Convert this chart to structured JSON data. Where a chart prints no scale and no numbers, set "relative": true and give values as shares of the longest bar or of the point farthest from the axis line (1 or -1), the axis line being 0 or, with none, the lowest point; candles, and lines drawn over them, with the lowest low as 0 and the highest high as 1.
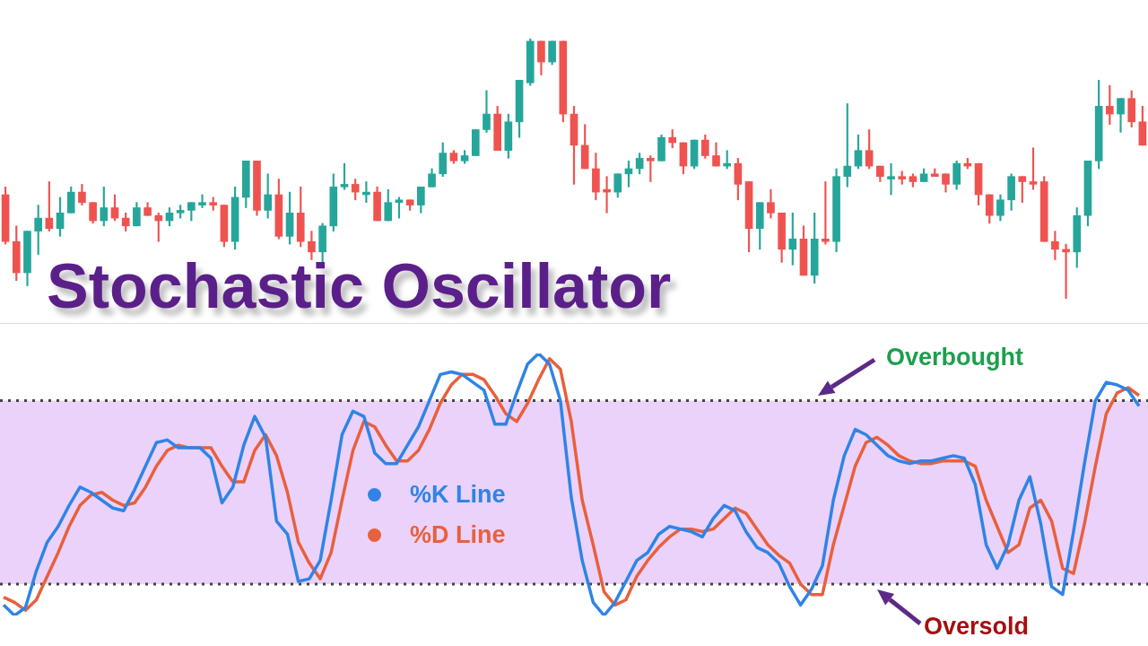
{
  "chart_data": [
    {
      "type": "candlestick",
      "title": "Stochastic Oscillator",
      "relative": true,
      "categories": [
        null,
        null,
        null,
        null,
        null,
        null,
        null,
        null,
        null,
        null,
        null,
        null,
        null,
        null,
        null,
        null,
        null,
        null,
        null,
        null,
        null,
        null,
        null,
        null,
        null,
        null,
        null,
        null,
        null,
        null,
        null,
        null,
        null,
        null,
        null,
        null,
        null,
        null,
        null,
        null,
        null,
        null,
        null,
        null,
        null,
        null,
        null,
        null,
        null,
        null,
        null,
        null,
        null,
        null,
        null,
        null,
        null,
        null,
        null,
        null,
        null,
        null,
        null,
        null,
        null,
        null,
        null,
        null,
        null,
        null,
        null,
        null,
        null,
        null,
        null,
        null,
        null,
        null,
        null,
        null,
        null,
        null,
        null,
        null,
        null,
        null,
        null,
        null,
        null,
        null,
        null,
        null,
        null,
        null,
        null,
        null,
        null,
        null,
        null,
        null,
        null,
        null,
        null,
        null,
        null
      ],
      "ohlc": [
        [
          0.4,
          0.43,
          0.21,
          0.22
        ],
        [
          0.22,
          0.28,
          0.07,
          0.1
        ],
        [
          0.1,
          0.26,
          0.05,
          0.26
        ],
        [
          0.26,
          0.36,
          0.17,
          0.31
        ],
        [
          0.31,
          0.45,
          0.26,
          0.27
        ],
        [
          0.27,
          0.39,
          0.24,
          0.33
        ],
        [
          0.33,
          0.43,
          0.33,
          0.41
        ],
        [
          0.41,
          0.44,
          0.36,
          0.37
        ],
        [
          0.37,
          0.37,
          0.29,
          0.3
        ],
        [
          0.3,
          0.43,
          0.28,
          0.35
        ],
        [
          0.35,
          0.4,
          0.3,
          0.31
        ],
        [
          0.31,
          0.33,
          0.26,
          0.28
        ],
        [
          0.28,
          0.37,
          0.28,
          0.35
        ],
        [
          0.35,
          0.37,
          0.32,
          0.32
        ],
        [
          0.32,
          0.33,
          0.22,
          0.3
        ],
        [
          0.3,
          0.35,
          0.28,
          0.33
        ],
        [
          0.33,
          0.36,
          0.31,
          0.34
        ],
        [
          0.34,
          0.37,
          0.3,
          0.37
        ],
        [
          0.36,
          0.4,
          0.35,
          0.37
        ],
        [
          0.37,
          0.39,
          0.34,
          0.36
        ],
        [
          0.36,
          0.36,
          0.2,
          0.22
        ],
        [
          0.22,
          0.43,
          0.19,
          0.39
        ],
        [
          0.39,
          0.53,
          0.35,
          0.53
        ],
        [
          0.53,
          0.53,
          0.32,
          0.34
        ],
        [
          0.34,
          0.48,
          0.31,
          0.4
        ],
        [
          0.4,
          0.46,
          0.23,
          0.24
        ],
        [
          0.24,
          0.41,
          0.21,
          0.33
        ],
        [
          0.33,
          0.43,
          0.2,
          0.22
        ],
        [
          0.22,
          0.26,
          0.15,
          0.18
        ],
        [
          0.18,
          0.29,
          0.14,
          0.28
        ],
        [
          0.28,
          0.48,
          0.26,
          0.43
        ],
        [
          0.43,
          0.52,
          0.42,
          0.44
        ],
        [
          0.44,
          0.46,
          0.38,
          0.41
        ],
        [
          0.4,
          0.45,
          0.37,
          0.41
        ],
        [
          0.41,
          0.43,
          0.3,
          0.3
        ],
        [
          0.3,
          0.42,
          0.3,
          0.37
        ],
        [
          0.37,
          0.39,
          0.31,
          0.38
        ],
        [
          0.38,
          0.38,
          0.34,
          0.36
        ],
        [
          0.36,
          0.43,
          0.33,
          0.43
        ],
        [
          0.43,
          0.5,
          0.43,
          0.48
        ],
        [
          0.48,
          0.6,
          0.47,
          0.56
        ],
        [
          0.56,
          0.57,
          0.52,
          0.53
        ],
        [
          0.53,
          0.57,
          0.52,
          0.55
        ],
        [
          0.55,
          0.65,
          0.55,
          0.65
        ],
        [
          0.65,
          0.8,
          0.64,
          0.71
        ],
        [
          0.71,
          0.74,
          0.57,
          0.57
        ],
        [
          0.57,
          0.71,
          0.54,
          0.68
        ],
        [
          0.68,
          0.84,
          0.62,
          0.84
        ],
        [
          0.83,
          1.0,
          0.82,
          0.99
        ],
        [
          0.99,
          0.99,
          0.86,
          0.91
        ],
        [
          0.91,
          0.99,
          0.9,
          0.99
        ],
        [
          0.99,
          0.99,
          0.68,
          0.71
        ],
        [
          0.71,
          0.74,
          0.44,
          0.59
        ],
        [
          0.59,
          0.67,
          0.5,
          0.5
        ],
        [
          0.5,
          0.56,
          0.38,
          0.41
        ],
        [
          0.42,
          0.47,
          0.33,
          0.41
        ],
        [
          0.41,
          0.48,
          0.39,
          0.48
        ],
        [
          0.48,
          0.53,
          0.43,
          0.5
        ],
        [
          0.5,
          0.56,
          0.48,
          0.54
        ],
        [
          0.54,
          0.55,
          0.45,
          0.53
        ],
        [
          0.53,
          0.63,
          0.53,
          0.62
        ],
        [
          0.62,
          0.65,
          0.58,
          0.6
        ],
        [
          0.6,
          0.6,
          0.48,
          0.51
        ],
        [
          0.51,
          0.61,
          0.5,
          0.61
        ],
        [
          0.61,
          0.63,
          0.54,
          0.55
        ],
        [
          0.55,
          0.6,
          0.51,
          0.51
        ],
        [
          0.51,
          0.57,
          0.5,
          0.52
        ],
        [
          0.52,
          0.54,
          0.38,
          0.44
        ],
        [
          0.45,
          0.45,
          0.18,
          0.27
        ],
        [
          0.27,
          0.37,
          0.19,
          0.37
        ],
        [
          0.37,
          0.42,
          0.31,
          0.33
        ],
        [
          0.33,
          0.33,
          0.14,
          0.19
        ],
        [
          0.19,
          0.33,
          0.13,
          0.23
        ],
        [
          0.23,
          0.28,
          0.09,
          0.09
        ],
        [
          0.09,
          0.33,
          0.06,
          0.23
        ],
        [
          0.23,
          0.45,
          0.21,
          0.22
        ],
        [
          0.22,
          0.5,
          0.18,
          0.47
        ],
        [
          0.47,
          0.75,
          0.43,
          0.51
        ],
        [
          0.51,
          0.63,
          0.5,
          0.57
        ],
        [
          0.57,
          0.65,
          0.5,
          0.51
        ],
        [
          0.51,
          0.51,
          0.45,
          0.47
        ],
        [
          0.46,
          0.52,
          0.4,
          0.47
        ],
        [
          0.47,
          0.49,
          0.44,
          0.46
        ],
        [
          0.47,
          0.48,
          0.43,
          0.45
        ],
        [
          0.45,
          0.5,
          0.45,
          0.48
        ],
        [
          0.48,
          0.5,
          0.47,
          0.47
        ],
        [
          0.48,
          0.48,
          0.41,
          0.44
        ],
        [
          0.44,
          0.53,
          0.42,
          0.52
        ],
        [
          0.52,
          0.54,
          0.5,
          0.51
        ],
        [
          0.52,
          0.52,
          0.36,
          0.4
        ],
        [
          0.4,
          0.4,
          0.29,
          0.32
        ],
        [
          0.32,
          0.4,
          0.3,
          0.38
        ],
        [
          0.38,
          0.48,
          0.34,
          0.47
        ],
        [
          0.47,
          0.47,
          0.37,
          0.45
        ],
        [
          0.45,
          0.58,
          0.42,
          0.44
        ],
        [
          0.45,
          0.47,
          0.22,
          0.22
        ],
        [
          0.22,
          0.26,
          0.15,
          0.19
        ],
        [
          0.19,
          0.21,
          0,
          0.18
        ],
        [
          0.18,
          0.35,
          0.12,
          0.32
        ],
        [
          0.32,
          0.53,
          0.28,
          0.53
        ],
        [
          0.53,
          0.84,
          0.5,
          0.74
        ],
        [
          0.74,
          0.82,
          0.67,
          0.71
        ],
        [
          0.71,
          0.77,
          0.64,
          0.77
        ],
        [
          0.77,
          0.8,
          0.66,
          0.68
        ],
        [
          0.68,
          0.74,
          0.59,
          0.59
        ]
      ],
      "colors": [
        "#ef5350",
        "#ef5350",
        "#26a69a",
        "#26a69a",
        "#ef5350",
        "#26a69a",
        "#26a69a",
        "#ef5350",
        "#ef5350",
        "#26a69a",
        "#ef5350",
        "#ef5350",
        "#26a69a",
        "#ef5350",
        "#ef5350",
        "#26a69a",
        "#26a69a",
        "#26a69a",
        "#26a69a",
        "#ef5350",
        "#ef5350",
        "#26a69a",
        "#26a69a",
        "#ef5350",
        "#26a69a",
        "#ef5350",
        "#26a69a",
        "#ef5350",
        "#ef5350",
        "#26a69a",
        "#26a69a",
        "#26a69a",
        "#ef5350",
        "#26a69a",
        "#ef5350",
        "#26a69a",
        "#26a69a",
        "#ef5350",
        "#26a69a",
        "#26a69a",
        "#26a69a",
        "#ef5350",
        "#26a69a",
        "#26a69a",
        "#26a69a",
        "#ef5350",
        "#26a69a",
        "#26a69a",
        "#26a69a",
        "#ef5350",
        "#26a69a",
        "#ef5350",
        "#ef5350",
        "#ef5350",
        "#ef5350",
        "#ef5350",
        "#26a69a",
        "#26a69a",
        "#26a69a",
        "#ef5350",
        "#26a69a",
        "#ef5350",
        "#ef5350",
        "#26a69a",
        "#ef5350",
        "#ef5350",
        "#26a69a",
        "#ef5350",
        "#ef5350",
        "#26a69a",
        "#ef5350",
        "#ef5350",
        "#26a69a",
        "#ef5350",
        "#26a69a",
        "#ef5350",
        "#26a69a",
        "#26a69a",
        "#26a69a",
        "#ef5350",
        "#ef5350",
        "#26a69a",
        "#ef5350",
        "#ef5350",
        "#26a69a",
        "#ef5350",
        "#ef5350",
        "#26a69a",
        "#ef5350",
        "#ef5350",
        "#ef5350",
        "#26a69a",
        "#26a69a",
        "#ef5350",
        "#ef5350",
        "#ef5350",
        "#ef5350",
        "#ef5350",
        "#26a69a",
        "#26a69a",
        "#26a69a",
        "#ef5350",
        "#26a69a",
        "#ef5350",
        "#ef5350"
      ]
    },
    {
      "type": "line",
      "relative": true,
      "legend": "left",
      "marker": "none",
      "categories": [
        null,
        null,
        null,
        null,
        null,
        null,
        null,
        null,
        null,
        null,
        null,
        null,
        null,
        null,
        null,
        null,
        null,
        null,
        null,
        null,
        null,
        null,
        null,
        null,
        null,
        null,
        null,
        null,
        null,
        null,
        null,
        null,
        null,
        null,
        null,
        null,
        null,
        null,
        null,
        null,
        null,
        null,
        null,
        null,
        null,
        null,
        null,
        null,
        null,
        null,
        null,
        null,
        null,
        null,
        null,
        null,
        null,
        null,
        null,
        null,
        null,
        null,
        null,
        null,
        null,
        null,
        null,
        null,
        null,
        null,
        null,
        null,
        null,
        null,
        null,
        null,
        null,
        null,
        null,
        null,
        null,
        null,
        null,
        null,
        null,
        null,
        null,
        null,
        null,
        null,
        null,
        null,
        null,
        null,
        null,
        null,
        null,
        null,
        null,
        null,
        null,
        null,
        null,
        null,
        null
      ],
      "series": [
        {
          "name": "%K Line",
          "color": "#2f84e6",
          "values": [
            0.04,
            0,
            0.03,
            0.17,
            0.28,
            0.34,
            0.42,
            0.49,
            0.47,
            0.44,
            0.41,
            0.4,
            0.48,
            0.57,
            0.66,
            0.67,
            0.64,
            0.64,
            0.64,
            0.6,
            0.43,
            0.49,
            0.65,
            0.76,
            0.68,
            0.36,
            0.31,
            0.13,
            0.14,
            0.21,
            0.44,
            0.69,
            0.78,
            0.76,
            0.62,
            0.58,
            0.58,
            0.65,
            0.72,
            0.82,
            0.92,
            0.93,
            0.92,
            0.89,
            0.86,
            0.73,
            0.73,
            0.85,
            0.96,
            1.0,
            0.96,
            0.82,
            0.45,
            0.21,
            0.05,
            0.0,
            0.05,
            0.13,
            0.21,
            0.24,
            0.31,
            0.34,
            0.33,
            0.32,
            0.3,
            0.37,
            0.42,
            0.4,
            0.32,
            0.26,
            0.24,
            0.2,
            0.11,
            0.04,
            0.1,
            0.19,
            0.44,
            0.61,
            0.71,
            0.69,
            0.65,
            0.61,
            0.59,
            0.58,
            0.59,
            0.59,
            0.6,
            0.61,
            0.6,
            0.5,
            0.27,
            0.18,
            0.27,
            0.44,
            0.53,
            0.35,
            0.11,
            0.08,
            0.32,
            0.58,
            0.82,
            0.89,
            0.88,
            0.86,
            0.8
          ]
        },
        {
          "name": "%D Line",
          "color": "#e8603c",
          "values": [
            0.07,
            0.05,
            0.02,
            0.06,
            0.15,
            0.24,
            0.34,
            0.42,
            0.46,
            0.47,
            0.44,
            0.42,
            0.43,
            0.49,
            0.57,
            0.63,
            0.65,
            0.64,
            0.64,
            0.64,
            0.57,
            0.51,
            0.51,
            0.63,
            0.69,
            0.61,
            0.47,
            0.28,
            0.2,
            0.14,
            0.24,
            0.44,
            0.63,
            0.74,
            0.72,
            0.65,
            0.59,
            0.59,
            0.63,
            0.71,
            0.81,
            0.88,
            0.92,
            0.92,
            0.9,
            0.84,
            0.77,
            0.74,
            0.81,
            0.9,
            0.98,
            0.94,
            0.74,
            0.44,
            0.27,
            0.09,
            0.04,
            0.06,
            0.15,
            0.21,
            0.26,
            0.3,
            0.33,
            0.33,
            0.32,
            0.33,
            0.37,
            0.41,
            0.39,
            0.33,
            0.27,
            0.23,
            0.2,
            0.12,
            0.08,
            0.08,
            0.27,
            0.42,
            0.57,
            0.66,
            0.68,
            0.65,
            0.61,
            0.59,
            0.58,
            0.58,
            0.59,
            0.59,
            0.59,
            0.57,
            0.44,
            0.34,
            0.24,
            0.27,
            0.41,
            0.44,
            0.36,
            0.18,
            0.16,
            0.35,
            0.57,
            0.77,
            0.85,
            0.87,
            0.84
          ]
        }
      ],
      "bands": [
        {
          "axis": "y",
          "from": 0.12,
          "to": 0.82,
          "color": "#ead2fb"
        }
      ],
      "ref_lines": [
        {
          "axis": "y",
          "value": 0.82,
          "label": "Overbought",
          "color": "#444444",
          "line_style": "dotted"
        },
        {
          "axis": "y",
          "value": 0.12,
          "label": "Oversold",
          "color": "#444444",
          "line_style": "dotted"
        }
      ]
    }
  ]
}
